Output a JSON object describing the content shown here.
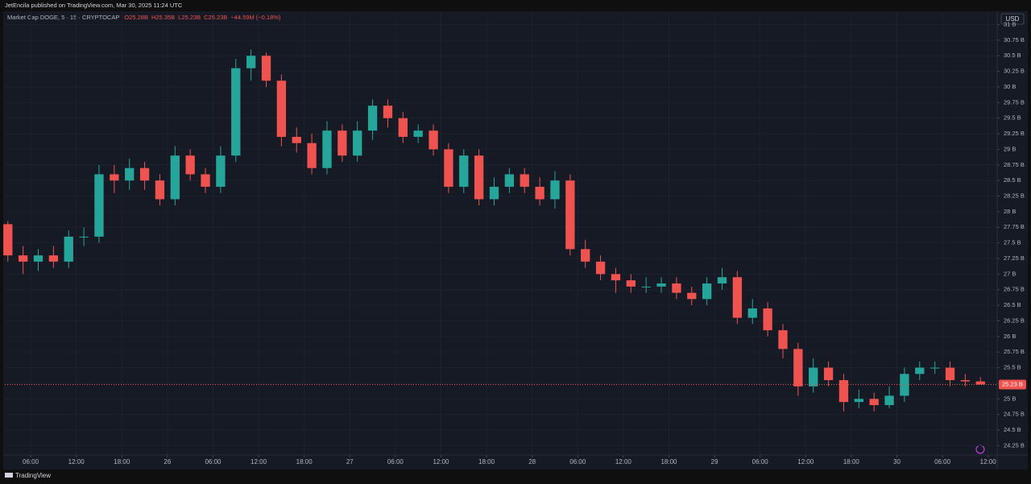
{
  "chart_data": {
    "type": "candlestick",
    "publisher": "JetEncila published on TradingView.com, Mar 30, 2025 11:24 UTC",
    "title": "Market Cap DOGE, 5 · 15 · CRYPTOCAP",
    "legend": {
      "open": "O25.28B",
      "high": "H25.35B",
      "low": "L25.23B",
      "close": "C25.23B",
      "change": "−44.59M (−0.18%)"
    },
    "currency": "USD",
    "brand": "TradingView",
    "up_color": "#26a69a",
    "down_color": "#ef5350",
    "grid": true,
    "x": [
      3,
      5,
      7,
      9,
      11,
      13,
      15,
      17,
      19,
      21,
      23,
      25,
      27,
      29,
      31,
      33,
      35,
      37,
      39,
      41,
      43,
      45,
      47,
      49,
      51,
      53,
      55,
      57,
      59,
      61,
      63,
      65,
      67,
      69,
      71,
      73,
      75,
      77,
      79,
      81,
      83,
      85,
      87,
      89,
      91,
      93,
      95,
      97,
      99,
      101,
      103,
      105,
      107,
      109,
      111,
      113,
      115,
      117,
      119,
      121,
      123,
      125,
      127,
      129,
      131
    ],
    "open": [
      27.8,
      27.3,
      27.2,
      27.3,
      27.2,
      27.6,
      27.6,
      28.6,
      28.5,
      28.7,
      28.5,
      28.2,
      28.9,
      28.6,
      28.4,
      28.9,
      30.3,
      30.5,
      30.1,
      29.2,
      29.1,
      28.7,
      29.3,
      28.9,
      29.3,
      29.7,
      29.5,
      29.2,
      29.3,
      29.0,
      28.4,
      28.9,
      28.2,
      28.4,
      28.6,
      28.4,
      28.2,
      28.5,
      27.4,
      27.2,
      27.0,
      26.9,
      26.8,
      26.8,
      26.85,
      26.7,
      26.6,
      26.85,
      26.95,
      26.3,
      26.45,
      26.1,
      25.8,
      25.2,
      25.5,
      25.3,
      24.95,
      25.0,
      24.9,
      25.05,
      25.4,
      25.5,
      25.5,
      25.3,
      25.28
    ],
    "high": [
      27.85,
      27.45,
      27.4,
      27.45,
      27.7,
      27.75,
      28.75,
      28.75,
      28.85,
      28.8,
      28.6,
      29.05,
      29.0,
      28.7,
      29.05,
      30.45,
      30.6,
      30.55,
      30.2,
      29.35,
      29.25,
      29.45,
      29.4,
      29.45,
      29.8,
      29.8,
      29.6,
      29.4,
      29.4,
      29.1,
      29.0,
      29.0,
      28.55,
      28.7,
      28.7,
      28.55,
      28.65,
      28.6,
      27.55,
      27.3,
      27.1,
      27.0,
      26.95,
      26.95,
      26.95,
      26.8,
      26.95,
      27.1,
      27.05,
      26.6,
      26.55,
      26.2,
      25.9,
      25.65,
      25.6,
      25.4,
      25.15,
      25.1,
      25.2,
      25.5,
      25.6,
      25.6,
      25.6,
      25.4,
      25.35
    ],
    "low": [
      27.2,
      27.0,
      27.05,
      27.1,
      27.1,
      27.45,
      27.5,
      28.3,
      28.35,
      28.35,
      28.1,
      28.1,
      28.5,
      28.3,
      28.3,
      28.8,
      30.1,
      30.0,
      29.05,
      28.95,
      28.6,
      28.6,
      28.8,
      28.8,
      29.15,
      29.35,
      29.1,
      29.1,
      28.9,
      28.3,
      28.3,
      28.1,
      28.1,
      28.3,
      28.3,
      28.1,
      28.05,
      27.3,
      27.1,
      26.9,
      26.7,
      26.7,
      26.7,
      26.7,
      26.6,
      26.5,
      26.5,
      26.75,
      26.2,
      26.2,
      26.0,
      25.65,
      25.05,
      25.1,
      25.2,
      24.8,
      24.85,
      24.8,
      24.85,
      24.95,
      25.3,
      25.4,
      25.2,
      25.2,
      25.23
    ],
    "close": [
      27.3,
      27.2,
      27.3,
      27.2,
      27.6,
      27.6,
      28.6,
      28.5,
      28.7,
      28.5,
      28.2,
      28.9,
      28.6,
      28.4,
      28.9,
      30.3,
      30.5,
      30.1,
      29.2,
      29.1,
      28.7,
      29.3,
      28.9,
      29.3,
      29.7,
      29.5,
      29.2,
      29.3,
      29.0,
      28.4,
      28.9,
      28.2,
      28.4,
      28.6,
      28.4,
      28.2,
      28.5,
      27.4,
      27.2,
      27.0,
      26.9,
      26.8,
      26.8,
      26.85,
      26.7,
      26.6,
      26.85,
      26.95,
      26.3,
      26.45,
      26.1,
      25.8,
      25.2,
      25.5,
      25.3,
      24.95,
      25.0,
      24.9,
      25.05,
      25.4,
      25.5,
      25.5,
      25.3,
      25.28,
      25.23
    ],
    "last_price": {
      "value": 25.23,
      "label": "25.23 B"
    },
    "xlim": [
      2.6,
      133.2
    ],
    "ylim": [
      24.1,
      31.2
    ],
    "xticks": [
      {
        "value": 6,
        "label": "06:00"
      },
      {
        "value": 12,
        "label": "12:00"
      },
      {
        "value": 18,
        "label": "18:00"
      },
      {
        "value": 24,
        "label": "26"
      },
      {
        "value": 30,
        "label": "06:00"
      },
      {
        "value": 36,
        "label": "12:00"
      },
      {
        "value": 42,
        "label": "18:00"
      },
      {
        "value": 48,
        "label": "27"
      },
      {
        "value": 54,
        "label": "06:00"
      },
      {
        "value": 60,
        "label": "12:00"
      },
      {
        "value": 66,
        "label": "18:00"
      },
      {
        "value": 72,
        "label": "28"
      },
      {
        "value": 78,
        "label": "06:00"
      },
      {
        "value": 84,
        "label": "12:00"
      },
      {
        "value": 90,
        "label": "18:00"
      },
      {
        "value": 96,
        "label": "29"
      },
      {
        "value": 102,
        "label": "06:00"
      },
      {
        "value": 108,
        "label": "12:00"
      },
      {
        "value": 114,
        "label": "18:00"
      },
      {
        "value": 120,
        "label": "30"
      },
      {
        "value": 126,
        "label": "06:00"
      },
      {
        "value": 132,
        "label": "12:00"
      }
    ],
    "yticks": [
      {
        "value": 24.25,
        "label": "24.25 B"
      },
      {
        "value": 24.5,
        "label": "24.5 B"
      },
      {
        "value": 24.75,
        "label": "24.75 B"
      },
      {
        "value": 25,
        "label": "25 B"
      },
      {
        "value": 25.25,
        "label": "25.25 B"
      },
      {
        "value": 25.5,
        "label": "25.5 B"
      },
      {
        "value": 25.75,
        "label": "25.75 B"
      },
      {
        "value": 26,
        "label": "26 B"
      },
      {
        "value": 26.25,
        "label": "26.25 B"
      },
      {
        "value": 26.5,
        "label": "26.5 B"
      },
      {
        "value": 26.75,
        "label": "26.75 B"
      },
      {
        "value": 27,
        "label": "27 B"
      },
      {
        "value": 27.25,
        "label": "27.25 B"
      },
      {
        "value": 27.5,
        "label": "27.5 B"
      },
      {
        "value": 27.75,
        "label": "27.75 B"
      },
      {
        "value": 28,
        "label": "28 B"
      },
      {
        "value": 28.25,
        "label": "28.25 B"
      },
      {
        "value": 28.5,
        "label": "28.5 B"
      },
      {
        "value": 28.75,
        "label": "28.75 B"
      },
      {
        "value": 29,
        "label": "29 B"
      },
      {
        "value": 29.25,
        "label": "29.25 B"
      },
      {
        "value": 29.5,
        "label": "29.5 B"
      },
      {
        "value": 29.75,
        "label": "29.75 B"
      },
      {
        "value": 30,
        "label": "30 B"
      },
      {
        "value": 30.25,
        "label": "30.25 B"
      },
      {
        "value": 30.5,
        "label": "30.5 B"
      },
      {
        "value": 30.75,
        "label": "30.75 B"
      },
      {
        "value": 31,
        "label": "31 B"
      }
    ]
  }
}
